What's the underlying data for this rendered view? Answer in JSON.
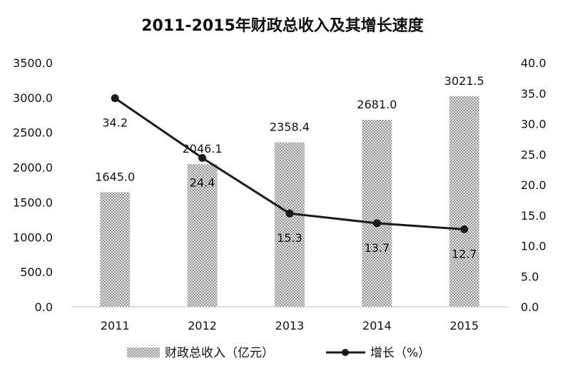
{
  "chart_data": {
    "type": "bar",
    "title": "2011-2015年财政总收入及其增长速度",
    "categories": [
      "2011",
      "2012",
      "2013",
      "2014",
      "2015"
    ],
    "series": [
      {
        "name": "财政总收入（亿元）",
        "type": "bar",
        "axis": "left",
        "values": [
          1645.0,
          2046.1,
          2358.4,
          2681.0,
          3021.5
        ],
        "labels": [
          "1645.0",
          "2046.1",
          "2358.4",
          "2681.0",
          "3021.5"
        ]
      },
      {
        "name": "增长（%）",
        "type": "line",
        "axis": "right",
        "values": [
          34.2,
          24.4,
          15.3,
          13.7,
          12.7
        ],
        "labels": [
          "34.2",
          "24.4",
          "15.3",
          "13.7",
          "12.7"
        ]
      }
    ],
    "y_left": {
      "ylim": [
        0,
        3500
      ],
      "ticks": [
        "0.0",
        "500.0",
        "1000.0",
        "1500.0",
        "2000.0",
        "2500.0",
        "3000.0",
        "3500.0"
      ]
    },
    "y_right": {
      "ylim": [
        0,
        40
      ],
      "ticks": [
        "0.0",
        "5.0",
        "10.0",
        "15.0",
        "20.0",
        "25.0",
        "30.0",
        "35.0",
        "40.0"
      ]
    },
    "grid": false,
    "legend": "bottom",
    "colors": {
      "bar": "#c8c8c8",
      "line": "#1a1a1a"
    }
  }
}
